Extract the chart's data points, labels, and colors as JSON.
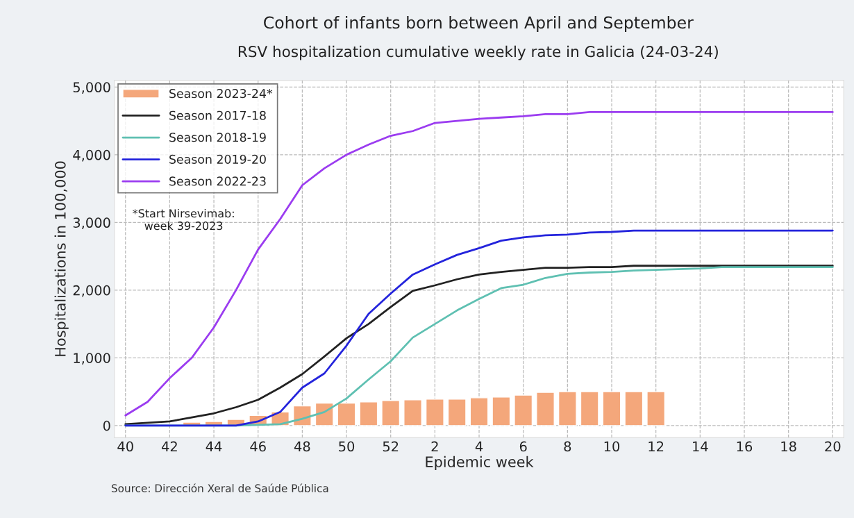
{
  "chart_data": {
    "type": "line",
    "title": "Cohort of infants born between April and September",
    "subtitle": "RSV hospitalization cumulative weekly rate in Galicia (24-03-24)",
    "xlabel": "Epidemic week",
    "ylabel": "Hospitalizations in 100,000",
    "categories": [
      "40",
      null,
      "42",
      null,
      "44",
      null,
      "46",
      null,
      "48",
      null,
      "50",
      null,
      "52",
      null,
      "2",
      null,
      "4",
      null,
      "6",
      null,
      "8",
      null,
      "10",
      null,
      "12",
      null,
      "14",
      null,
      "16",
      null,
      "18",
      null,
      "20"
    ],
    "series": [
      {
        "name": "Season 2023-24*",
        "type": "bar",
        "color": "#f4a77b",
        "values": [
          null,
          null,
          null,
          50,
          60,
          90,
          150,
          200,
          290,
          330,
          330,
          350,
          370,
          380,
          390,
          390,
          410,
          420,
          450,
          490,
          500,
          500,
          500,
          500,
          500,
          null,
          null,
          null,
          null,
          null,
          null,
          null,
          null
        ]
      },
      {
        "name": "Season 2017-18",
        "color": "#222222",
        "values": [
          20,
          40,
          60,
          120,
          180,
          270,
          380,
          560,
          760,
          1020,
          1290,
          1500,
          1750,
          1990,
          2070,
          2160,
          2230,
          2270,
          2300,
          2330,
          2330,
          2340,
          2340,
          2360,
          2360,
          2360,
          2360,
          2360,
          2360,
          2360,
          2360,
          2360,
          2360
        ]
      },
      {
        "name": "Season 2018-19",
        "color": "#5fc0b2",
        "values": [
          0,
          0,
          0,
          0,
          0,
          0,
          10,
          20,
          100,
          200,
          400,
          680,
          950,
          1300,
          1500,
          1700,
          1870,
          2030,
          2080,
          2180,
          2240,
          2260,
          2270,
          2290,
          2300,
          2310,
          2320,
          2340,
          2340,
          2340,
          2340,
          2340,
          2340
        ]
      },
      {
        "name": "Season 2019-20",
        "color": "#2424dc",
        "values": [
          0,
          0,
          0,
          0,
          0,
          0,
          60,
          200,
          560,
          770,
          1180,
          1650,
          1950,
          2230,
          2380,
          2520,
          2620,
          2730,
          2780,
          2810,
          2820,
          2850,
          2860,
          2880,
          2880,
          2880,
          2880,
          2880,
          2880,
          2880,
          2880,
          2880,
          2880
        ]
      },
      {
        "name": "Season 2022-23",
        "color": "#9b3cf0",
        "values": [
          150,
          350,
          700,
          1000,
          1450,
          2000,
          2600,
          3050,
          3550,
          3800,
          4000,
          4150,
          4280,
          4350,
          4470,
          4500,
          4530,
          4550,
          4570,
          4600,
          4600,
          4630,
          4630,
          4630,
          4630,
          4630,
          4630,
          4630,
          4630,
          4630,
          4630,
          4630,
          4630
        ]
      }
    ],
    "ylim": [
      -180,
      5100
    ],
    "yticks": [
      0,
      {
        "value": 1000,
        "label": "1,000"
      },
      {
        "value": 2000,
        "label": "2,000"
      },
      {
        "value": 3000,
        "label": "3,000"
      },
      {
        "value": 4000,
        "label": "4,000"
      },
      {
        "value": 5000,
        "label": "5,000"
      }
    ],
    "grid": true,
    "legend": "top left",
    "line_style": "solid",
    "annotations": [
      "*Start Nirsevimab:\nweek 39-2023",
      "Source: Dirección Xeral de Saúde Pública"
    ]
  }
}
